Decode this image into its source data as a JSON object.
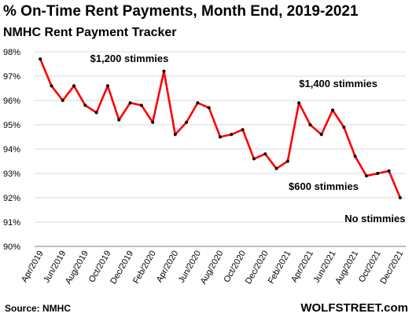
{
  "header": {
    "title": "% On-Time Rent Payments, Month End, 2019-2021",
    "subtitle": "NMHC Rent Payment Tracker"
  },
  "footer": {
    "source": "Source: NMHC",
    "brand": "WOLFSTREET.com"
  },
  "colors": {
    "line": "#ff0000",
    "marker": "#000000",
    "grid": "#d9d9d9"
  },
  "chart_data": {
    "type": "line",
    "title": "% On-Time Rent Payments, Month End, 2019-2021",
    "subtitle": "NMHC Rent Payment Tracker",
    "xlabel": "",
    "ylabel": "",
    "ylim": [
      90,
      98
    ],
    "y_ticks": [
      "90%",
      "91%",
      "92%",
      "93%",
      "94%",
      "95%",
      "96%",
      "97%",
      "98%"
    ],
    "grid": true,
    "legend": "none",
    "x": [
      "Apr/2019",
      "May/2019",
      "Jun/2019",
      "Jul/2019",
      "Aug/2019",
      "Sep/2019",
      "Oct/2019",
      "Nov/2019",
      "Dec/2019",
      "Jan/2020",
      "Feb/2020",
      "Mar/2020",
      "Apr/2020",
      "May/2020",
      "Jun/2020",
      "Jul/2020",
      "Aug/2020",
      "Sep/2020",
      "Oct/2020",
      "Nov/2020",
      "Dec/2020",
      "Jan/2021",
      "Feb/2021",
      "Mar/2021",
      "Apr/2021",
      "May/2021",
      "Jun/2021",
      "Jul/2021",
      "Aug/2021",
      "Sep/2021",
      "Oct/2021",
      "Nov/2021",
      "Dec/2021"
    ],
    "x_tick_labels": [
      "Apr/2019",
      "Jun/2019",
      "Aug/2019",
      "Oct/2019",
      "Dec/2019",
      "Feb/2020",
      "Apr/2020",
      "Jun/2020",
      "Aug/2020",
      "Oct/2020",
      "Dec/2020",
      "Feb/2021",
      "Apr/2021",
      "Jun/2021",
      "Aug/2021",
      "Oct/2021",
      "Dec/2021"
    ],
    "series": [
      {
        "values": [
          97.7,
          96.6,
          96.0,
          96.6,
          95.8,
          95.5,
          96.6,
          95.2,
          95.9,
          95.8,
          95.1,
          97.2,
          94.6,
          95.1,
          95.9,
          95.7,
          94.5,
          94.6,
          94.8,
          93.6,
          93.8,
          93.2,
          93.5,
          95.9,
          95.0,
          94.6,
          95.6,
          94.9,
          93.7,
          92.9,
          93.0,
          93.1,
          92.0
        ]
      }
    ],
    "annotations": [
      {
        "text": "$1,200 stimmies",
        "at": "Mar/2020"
      },
      {
        "text": "$600 stimmies",
        "at": "Jan/2021"
      },
      {
        "text": "$1,400 stimmies",
        "at": "Mar/2021"
      },
      {
        "text": "No stimmies",
        "at": "Dec/2021"
      }
    ]
  }
}
